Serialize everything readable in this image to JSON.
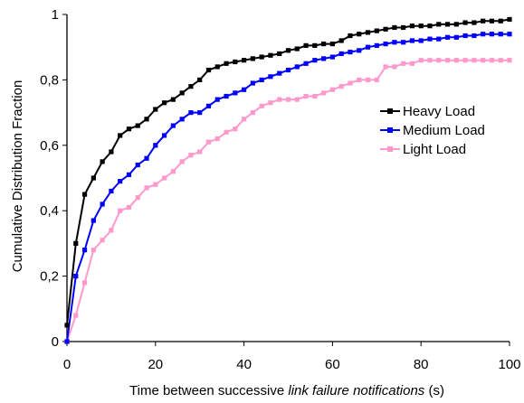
{
  "chart_data": {
    "type": "line",
    "xlabel": {
      "prefix": "Time between successive ",
      "emphasis": "link failure notifications",
      "suffix": " (s)"
    },
    "ylabel": "Cumulative Distribution Fraction",
    "xlim": [
      0,
      100
    ],
    "ylim": [
      0,
      1
    ],
    "x_ticks": [
      0,
      20,
      40,
      60,
      80,
      100
    ],
    "y_ticks": [
      0,
      0.2,
      0.4,
      0.6,
      0.8,
      1
    ],
    "x_tick_labels": [
      "0",
      "20",
      "40",
      "60",
      "80",
      "100"
    ],
    "y_tick_labels": [
      "0",
      "0,2",
      "0,4",
      "0,6",
      "0,8",
      "1"
    ],
    "grid": false,
    "legend_position": "right",
    "series": [
      {
        "name": "Heavy Load",
        "color": "#000000",
        "marker": "square",
        "x": [
          0,
          2,
          4,
          6,
          8,
          10,
          12,
          14,
          16,
          18,
          20,
          22,
          24,
          26,
          28,
          30,
          32,
          34,
          36,
          38,
          40,
          42,
          44,
          46,
          48,
          50,
          52,
          54,
          56,
          58,
          60,
          62,
          64,
          66,
          68,
          70,
          72,
          74,
          76,
          78,
          80,
          82,
          84,
          86,
          88,
          90,
          92,
          94,
          96,
          98,
          100
        ],
        "y": [
          0.05,
          0.3,
          0.45,
          0.5,
          0.55,
          0.58,
          0.63,
          0.65,
          0.66,
          0.68,
          0.71,
          0.73,
          0.74,
          0.76,
          0.78,
          0.8,
          0.83,
          0.84,
          0.85,
          0.855,
          0.86,
          0.865,
          0.87,
          0.875,
          0.88,
          0.89,
          0.895,
          0.905,
          0.905,
          0.91,
          0.91,
          0.92,
          0.935,
          0.94,
          0.945,
          0.95,
          0.955,
          0.96,
          0.96,
          0.965,
          0.965,
          0.965,
          0.97,
          0.97,
          0.97,
          0.975,
          0.975,
          0.98,
          0.98,
          0.98,
          0.985
        ]
      },
      {
        "name": "Medium Load",
        "color": "#0000ff",
        "marker": "square",
        "x": [
          0,
          2,
          4,
          6,
          8,
          10,
          12,
          14,
          16,
          18,
          20,
          22,
          24,
          26,
          28,
          30,
          32,
          34,
          36,
          38,
          40,
          42,
          44,
          46,
          48,
          50,
          52,
          54,
          56,
          58,
          60,
          62,
          64,
          66,
          68,
          70,
          72,
          74,
          76,
          78,
          80,
          82,
          84,
          86,
          88,
          90,
          92,
          94,
          96,
          98,
          100
        ],
        "y": [
          0.0,
          0.2,
          0.28,
          0.37,
          0.42,
          0.46,
          0.49,
          0.51,
          0.54,
          0.56,
          0.6,
          0.63,
          0.66,
          0.68,
          0.7,
          0.7,
          0.72,
          0.74,
          0.75,
          0.76,
          0.77,
          0.79,
          0.8,
          0.81,
          0.82,
          0.83,
          0.84,
          0.85,
          0.86,
          0.865,
          0.87,
          0.88,
          0.885,
          0.89,
          0.9,
          0.905,
          0.91,
          0.915,
          0.915,
          0.92,
          0.92,
          0.925,
          0.925,
          0.93,
          0.93,
          0.935,
          0.935,
          0.94,
          0.94,
          0.94,
          0.94
        ]
      },
      {
        "name": "Light Load",
        "color": "#ff99cc",
        "marker": "square",
        "x": [
          0,
          2,
          4,
          6,
          8,
          10,
          12,
          14,
          16,
          18,
          20,
          22,
          24,
          26,
          28,
          30,
          32,
          34,
          36,
          38,
          40,
          42,
          44,
          46,
          48,
          50,
          52,
          54,
          56,
          58,
          60,
          62,
          64,
          66,
          68,
          70,
          72,
          74,
          76,
          78,
          80,
          82,
          84,
          86,
          88,
          90,
          92,
          94,
          96,
          98,
          100
        ],
        "y": [
          0.0,
          0.08,
          0.18,
          0.28,
          0.31,
          0.34,
          0.4,
          0.41,
          0.44,
          0.47,
          0.48,
          0.5,
          0.52,
          0.55,
          0.57,
          0.58,
          0.61,
          0.62,
          0.64,
          0.65,
          0.68,
          0.7,
          0.72,
          0.73,
          0.74,
          0.74,
          0.74,
          0.75,
          0.75,
          0.76,
          0.77,
          0.78,
          0.79,
          0.8,
          0.8,
          0.8,
          0.84,
          0.84,
          0.85,
          0.85,
          0.86,
          0.86,
          0.86,
          0.86,
          0.86,
          0.86,
          0.86,
          0.86,
          0.86,
          0.86,
          0.86
        ]
      }
    ]
  }
}
